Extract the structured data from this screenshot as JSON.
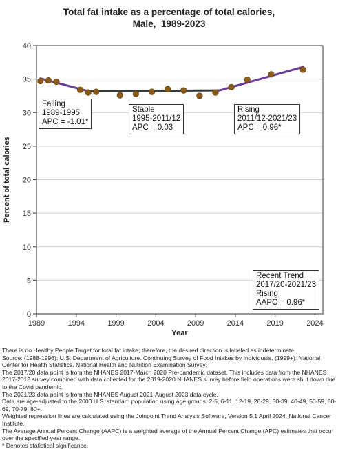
{
  "chart_data": {
    "type": "line",
    "title": [
      "Total fat intake as a percentage of total calories,",
      "Male,  1989-2023"
    ],
    "xlabel": "Year",
    "ylabel": "Percent of total calories",
    "xlim": [
      1989,
      2025
    ],
    "ylim": [
      0,
      40
    ],
    "x_ticks": [
      1989,
      1994,
      1999,
      2004,
      2009,
      2014,
      2019,
      2024
    ],
    "y_ticks": [
      0,
      5,
      10,
      15,
      20,
      25,
      30,
      35,
      40
    ],
    "grid": "horizontal",
    "observed": {
      "x": [
        1989.5,
        1990.5,
        1991.5,
        1994.5,
        1995.5,
        1996.5,
        1999.5,
        2001.5,
        2003.5,
        2005.5,
        2007.5,
        2009.5,
        2011.5,
        2013.5,
        2015.5,
        2018.5,
        2022.5
      ],
      "y": [
        34.7,
        34.8,
        34.6,
        33.4,
        33.0,
        33.1,
        32.6,
        32.8,
        33.1,
        33.5,
        33.3,
        32.5,
        33.0,
        33.8,
        34.9,
        35.7,
        36.4
      ]
    },
    "trend_segments": [
      {
        "x": [
          1989.5,
          1995.5
        ],
        "y": [
          35.1,
          33.2
        ],
        "color": "#6a3d9a"
      },
      {
        "x": [
          1995.5,
          2012.0
        ],
        "y": [
          33.2,
          33.3
        ],
        "color": "#333b3b"
      },
      {
        "x": [
          2012.0,
          2022.5
        ],
        "y": [
          33.3,
          36.8
        ],
        "color": "#6a3d9a"
      }
    ],
    "marker_color": "#8b5a14",
    "annotations": [
      {
        "lines": [
          "Falling",
          "1989-1995",
          "APC = -1.01*"
        ]
      },
      {
        "lines": [
          "Stable",
          "1995-2011/12",
          "APC =  0.03"
        ]
      },
      {
        "lines": [
          "Rising",
          "2011/12-2021/23",
          "APC =  0.96*"
        ]
      },
      {
        "lines": [
          "Recent Trend",
          "2017/20-2021/23",
          "Rising",
          "AAPC =  0.96*"
        ]
      }
    ]
  },
  "footnotes": [
    "There is no Healthy People Target for total fat intake; therefore, the desired direction is labeled as indeterminate.",
    "Source: (1988-1996): U.S. Department of Agriculture. Continuing Survey of Food Intakes by Individuals. (1999+): National Center for Health Statistics. National Health and Nutrition Examination Survey.",
    "The 2017/20 data point is from the NHANES 2017-March 2020 Pre-pandemic dataset. This includes data from the NHANES 2017-2018 survey combined with data collected for the 2019-2020 NHANES survey before field operations were shut down due to the Covid pandemic.",
    "The 2021/23 data point is from the NHANES August 2021-August 2023 data cycle.",
    "Data are age-adjusted to the 2000 U.S. standard population using age groups: 2-5, 6-11, 12-19, 20-29, 30-39, 40-49, 50-59, 60-69, 70-79, 80+.",
    "Weighted regression lines are calculated using the Joinpoint Trend Analysis Software, Version 5.1 April 2024, National Cancer Institute.",
    "The Average Annual Percent Change (AAPC) is a weighted average of the Annual Percent Change (APC) estimates that occur over the specified year range.",
    "* Denotes statistical significance."
  ]
}
